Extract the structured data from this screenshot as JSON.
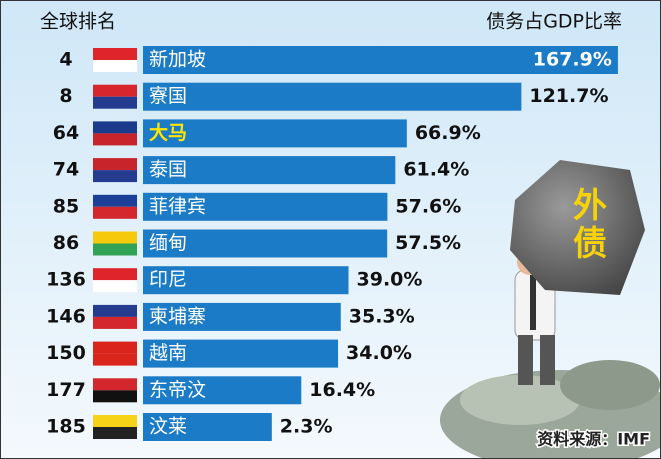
{
  "chart_data": {
    "type": "bar",
    "rank_header": "全球排名",
    "value_header": "债务占GDP比率",
    "ranks": [
      4,
      8,
      64,
      74,
      85,
      86,
      136,
      146,
      150,
      177,
      185
    ],
    "categories": [
      "新加坡",
      "寮国",
      "大马",
      "泰国",
      "菲律宾",
      "缅甸",
      "印尼",
      "柬埔寨",
      "越南",
      "东帝汶",
      "汶莱"
    ],
    "values": [
      167.9,
      121.7,
      66.9,
      61.4,
      57.6,
      57.5,
      39.0,
      35.3,
      34.0,
      16.4,
      2.3
    ],
    "value_labels": [
      "167.9%",
      "121.7%",
      "66.9%",
      "61.4%",
      "57.6%",
      "57.5%",
      "39.0%",
      "35.3%",
      "34.0%",
      "16.4%",
      "2.3%"
    ],
    "color": "#1b7bc6",
    "annotation": "外债",
    "source": "资料来源：IMF"
  }
}
